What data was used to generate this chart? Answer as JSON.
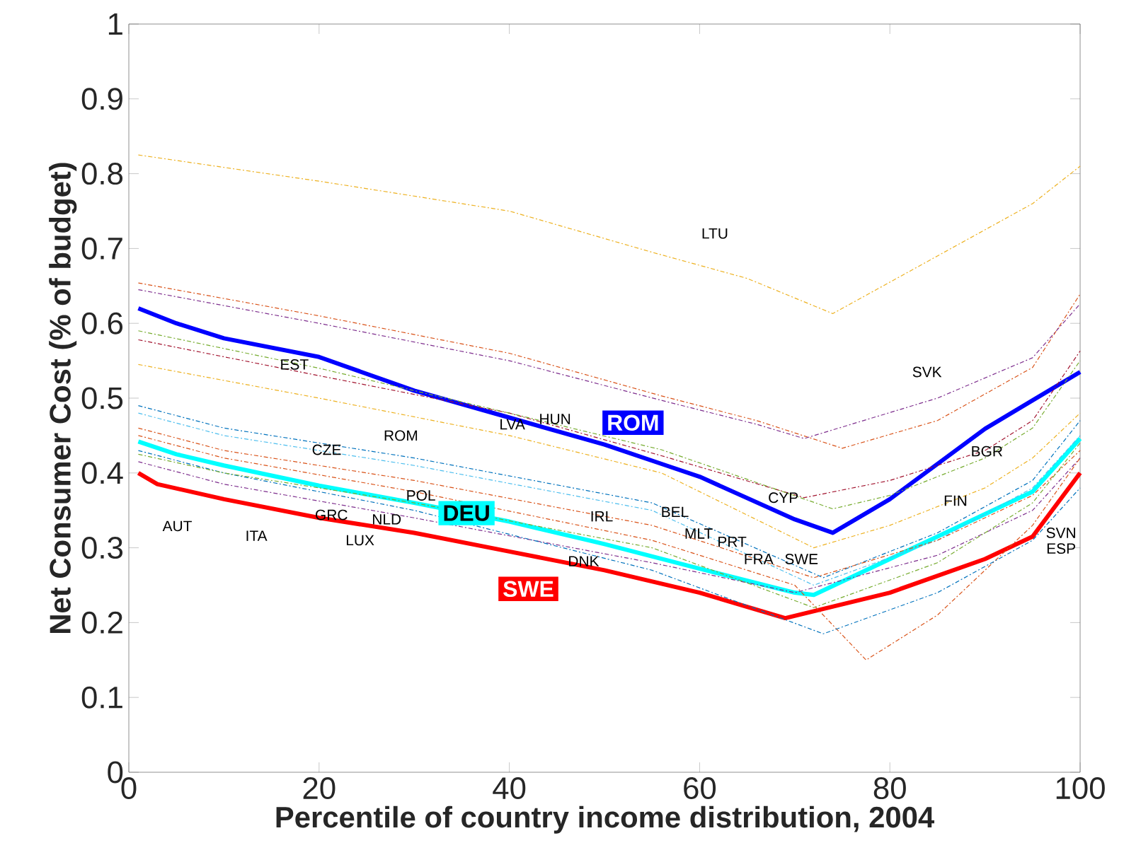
{
  "chart_data": {
    "type": "line",
    "xlabel": "Percentile of country income distribution, 2004",
    "ylabel": "Net Consumer Cost (% of budget)",
    "xlim": [
      0,
      100
    ],
    "ylim": [
      0,
      1
    ],
    "xticks": [
      0,
      20,
      40,
      60,
      80,
      100
    ],
    "yticks": [
      0,
      0.1,
      0.2,
      0.3,
      0.4,
      0.5,
      0.6,
      0.7,
      0.8,
      0.9,
      1
    ],
    "series": [
      {
        "color": "#edb120",
        "line_style": "dashdot",
        "x": [
          1,
          20,
          40,
          55,
          65,
          74,
          85,
          95,
          100
        ],
        "values": [
          0.825,
          0.79,
          0.75,
          0.695,
          0.66,
          0.613,
          0.69,
          0.76,
          0.81
        ]
      },
      {
        "color": "#d95319",
        "line_style": "dashdot",
        "x": [
          1,
          20,
          40,
          56,
          66,
          75,
          85,
          95,
          100
        ],
        "values": [
          0.654,
          0.61,
          0.56,
          0.503,
          0.47,
          0.433,
          0.47,
          0.541,
          0.639
        ]
      },
      {
        "color": "#7e2f8e",
        "line_style": "dashdot",
        "x": [
          1,
          20,
          40,
          56,
          66,
          71,
          85,
          95,
          100
        ],
        "values": [
          0.645,
          0.6,
          0.55,
          0.497,
          0.465,
          0.446,
          0.5,
          0.554,
          0.626
        ]
      },
      {
        "color": "#a2142f",
        "line_style": "dashdot",
        "x": [
          1,
          20,
          40,
          56,
          71,
          80,
          90,
          95,
          100
        ],
        "values": [
          0.578,
          0.53,
          0.48,
          0.423,
          0.367,
          0.39,
          0.43,
          0.47,
          0.563
        ]
      },
      {
        "color": "#77ac30",
        "line_style": "dashdot",
        "x": [
          1,
          20,
          40,
          56,
          74,
          80,
          90,
          95,
          100
        ],
        "values": [
          0.59,
          0.54,
          0.48,
          0.431,
          0.352,
          0.37,
          0.42,
          0.46,
          0.55
        ]
      },
      {
        "color": "#edb120",
        "line_style": "dashdot",
        "x": [
          1,
          20,
          40,
          56,
          72,
          80,
          90,
          95,
          100
        ],
        "values": [
          0.545,
          0.5,
          0.45,
          0.4,
          0.3,
          0.33,
          0.38,
          0.42,
          0.48
        ]
      },
      {
        "color": "#0072bd",
        "line_style": "dashdot",
        "x": [
          1,
          10,
          30,
          55,
          73,
          85,
          95,
          100
        ],
        "values": [
          0.49,
          0.46,
          0.42,
          0.36,
          0.26,
          0.32,
          0.39,
          0.47
        ]
      },
      {
        "color": "#4dbeee",
        "line_style": "dashdot",
        "x": [
          1,
          10,
          30,
          55,
          72,
          85,
          95,
          100
        ],
        "values": [
          0.48,
          0.45,
          0.41,
          0.35,
          0.25,
          0.31,
          0.38,
          0.45
        ]
      },
      {
        "color": "#d95319",
        "line_style": "dashdot",
        "x": [
          1,
          10,
          30,
          55,
          72,
          85,
          95,
          100
        ],
        "values": [
          0.46,
          0.43,
          0.39,
          0.33,
          0.26,
          0.31,
          0.37,
          0.43
        ]
      },
      {
        "color": "#7e2f8e",
        "line_style": "dashdot",
        "x": [
          1,
          10,
          30,
          55,
          70,
          85,
          95,
          100
        ],
        "values": [
          0.415,
          0.385,
          0.34,
          0.28,
          0.24,
          0.29,
          0.35,
          0.42
        ]
      },
      {
        "color": "#d95319",
        "line_style": "dashdot",
        "x": [
          1,
          10,
          30,
          55,
          70,
          77.5,
          85,
          95,
          100
        ],
        "values": [
          0.45,
          0.42,
          0.375,
          0.31,
          0.25,
          0.15,
          0.21,
          0.33,
          0.42
        ]
      },
      {
        "color": "#0072bd",
        "line_style": "dashdot",
        "x": [
          1,
          10,
          30,
          55,
          73,
          85,
          95,
          100
        ],
        "values": [
          0.43,
          0.4,
          0.35,
          0.27,
          0.185,
          0.24,
          0.31,
          0.38
        ]
      },
      {
        "color": "#77ac30",
        "line_style": "dashdot",
        "x": [
          1,
          10,
          30,
          55,
          72,
          85,
          95,
          100
        ],
        "values": [
          0.425,
          0.4,
          0.36,
          0.3,
          0.22,
          0.28,
          0.36,
          0.44
        ]
      },
      {
        "name": "ROM",
        "color": "#0000ff",
        "line_style": "solid",
        "x": [
          1,
          5,
          10,
          20,
          30,
          40,
          50,
          56.5,
          60,
          70,
          74,
          80,
          90,
          95,
          100
        ],
        "values": [
          0.62,
          0.6,
          0.58,
          0.555,
          0.51,
          0.474,
          0.438,
          0.41,
          0.395,
          0.338,
          0.32,
          0.365,
          0.459,
          0.497,
          0.535
        ]
      },
      {
        "name": "DEU",
        "color": "#00ffff",
        "line_style": "solid",
        "x": [
          1,
          5,
          10,
          20,
          30,
          40,
          50,
          60,
          70,
          72,
          80,
          90,
          95,
          100
        ],
        "values": [
          0.442,
          0.425,
          0.41,
          0.383,
          0.36,
          0.335,
          0.305,
          0.272,
          0.24,
          0.237,
          0.285,
          0.345,
          0.375,
          0.446
        ]
      },
      {
        "name": "SWE",
        "color": "#ff0000",
        "line_style": "solid",
        "x": [
          1,
          3,
          10,
          20,
          30,
          40,
          50,
          60,
          69,
          80,
          90,
          95,
          100
        ],
        "values": [
          0.4,
          0.385,
          0.365,
          0.34,
          0.32,
          0.295,
          0.27,
          0.24,
          0.206,
          0.24,
          0.285,
          0.315,
          0.4
        ]
      }
    ],
    "annotations": [
      "LTU",
      "EST",
      "SVK",
      "LVA",
      "HUN",
      "BGR",
      "CZE",
      "ROM",
      "CYP",
      "FIN",
      "BEL",
      "IRL",
      "POL",
      "GRC",
      "NLD",
      "MLT",
      "SVN",
      "AUT",
      "ITA",
      "LUX",
      "PRT",
      "ESP",
      "FRA",
      "SWE",
      "DNK"
    ]
  }
}
